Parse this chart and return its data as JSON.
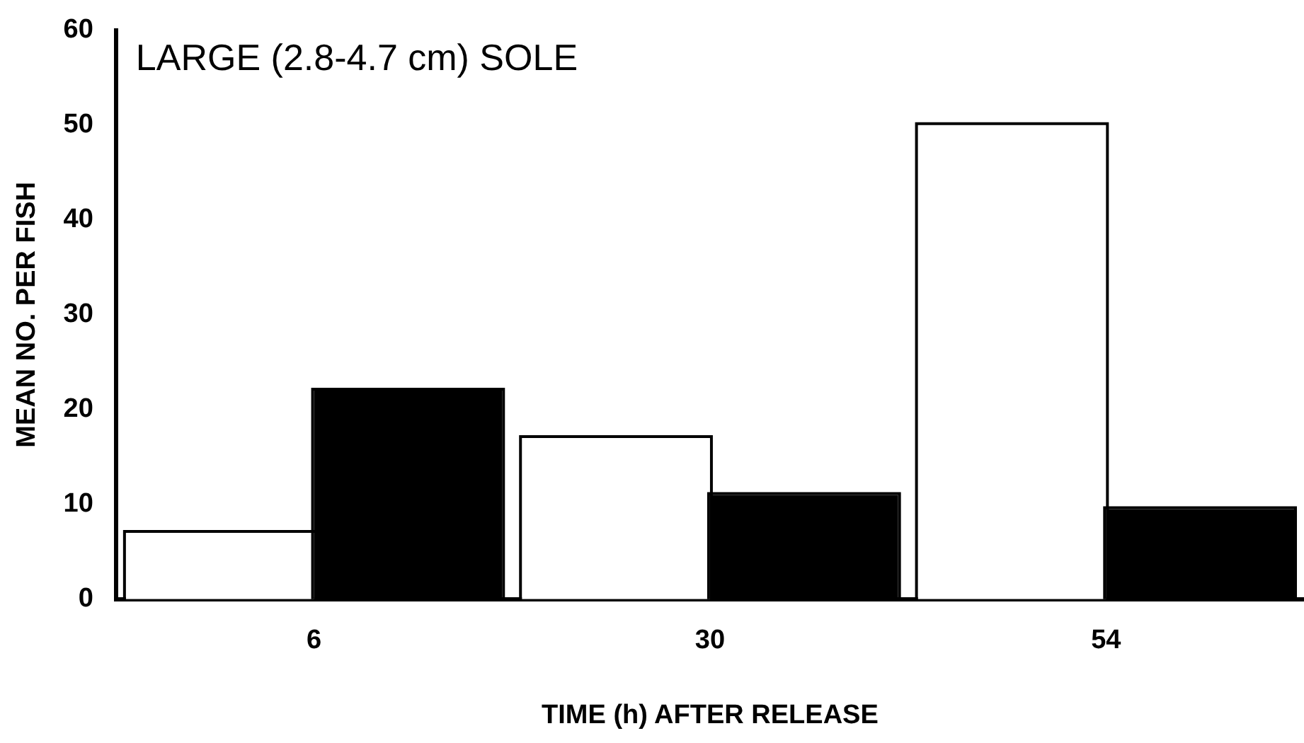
{
  "chart_data": {
    "type": "bar",
    "title": "LARGE (2.8-4.7 cm) SOLE",
    "xlabel": "TIME (h) AFTER RELEASE",
    "ylabel": "MEAN NO. PER FISH",
    "categories": [
      "6",
      "30",
      "54"
    ],
    "series": [
      {
        "color": "#ffffff",
        "values": [
          7,
          17,
          50
        ]
      },
      {
        "color": "#000000",
        "values": [
          22,
          11,
          9.5
        ]
      }
    ],
    "ylim": [
      0,
      60
    ],
    "yticks": [
      0,
      10,
      20,
      30,
      40,
      50,
      60
    ],
    "grid": false,
    "legend": false
  }
}
